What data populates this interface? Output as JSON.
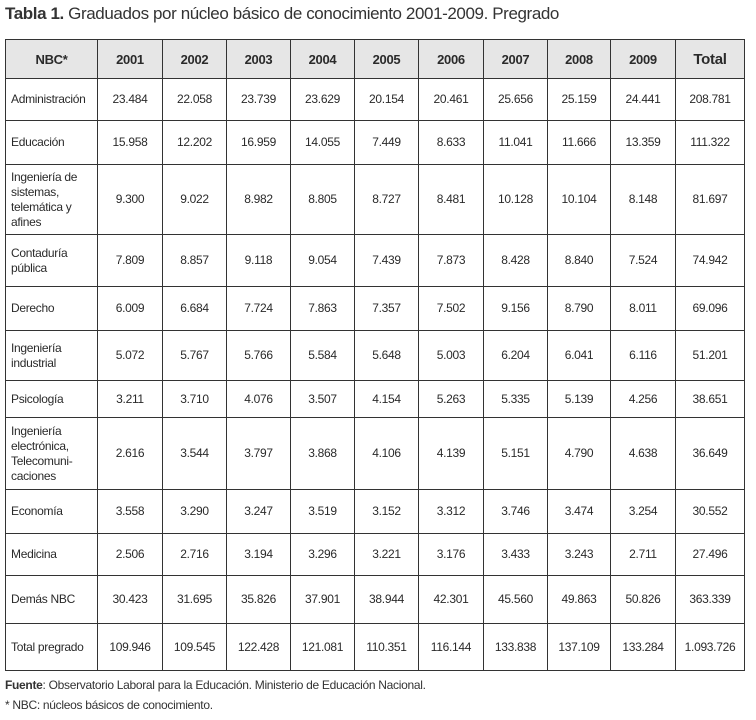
{
  "title": {
    "label": "Tabla 1.",
    "text": " Graduados por núcleo básico de conocimiento 2001-2009. Pregrado"
  },
  "table": {
    "headers": [
      "NBC*",
      "2001",
      "2002",
      "2003",
      "2004",
      "2005",
      "2006",
      "2007",
      "2008",
      "2009",
      "Total"
    ],
    "rows": [
      {
        "label": "Administración",
        "values": [
          "23.484",
          "22.058",
          "23.739",
          "23.629",
          "20.154",
          "20.461",
          "25.656",
          "25.159",
          "24.441",
          "208.781"
        ]
      },
      {
        "label": "Educación",
        "values": [
          "15.958",
          "12.202",
          "16.959",
          "14.055",
          "7.449",
          "8.633",
          "11.041",
          "11.666",
          "13.359",
          "111.322"
        ]
      },
      {
        "label": "Ingeniería de sistemas, telemática y afines",
        "values": [
          "9.300",
          "9.022",
          "8.982",
          "8.805",
          "8.727",
          "8.481",
          "10.128",
          "10.104",
          "8.148",
          "81.697"
        ]
      },
      {
        "label": "Contaduría pública",
        "values": [
          "7.809",
          "8.857",
          "9.118",
          "9.054",
          "7.439",
          "7.873",
          "8.428",
          "8.840",
          "7.524",
          "74.942"
        ]
      },
      {
        "label": "Derecho",
        "values": [
          "6.009",
          "6.684",
          "7.724",
          "7.863",
          "7.357",
          "7.502",
          "9.156",
          "8.790",
          "8.011",
          "69.096"
        ]
      },
      {
        "label": "Ingeniería industrial",
        "values": [
          "5.072",
          "5.767",
          "5.766",
          "5.584",
          "5.648",
          "5.003",
          "6.204",
          "6.041",
          "6.116",
          "51.201"
        ]
      },
      {
        "label": "Psicología",
        "values": [
          "3.211",
          "3.710",
          "4.076",
          "3.507",
          "4.154",
          "5.263",
          "5.335",
          "5.139",
          "4.256",
          "38.651"
        ]
      },
      {
        "label": "Ingeniería electrónica, Telecomuni-caciones",
        "values": [
          "2.616",
          "3.544",
          "3.797",
          "3.868",
          "4.106",
          "4.139",
          "5.151",
          "4.790",
          "4.638",
          "36.649"
        ]
      },
      {
        "label": "Economía",
        "values": [
          "3.558",
          "3.290",
          "3.247",
          "3.519",
          "3.152",
          "3.312",
          "3.746",
          "3.474",
          "3.254",
          "30.552"
        ]
      },
      {
        "label": "Medicina",
        "values": [
          "2.506",
          "2.716",
          "3.194",
          "3.296",
          "3.221",
          "3.176",
          "3.433",
          "3.243",
          "2.711",
          "27.496"
        ]
      },
      {
        "label": "Demás NBC",
        "values": [
          "30.423",
          "31.695",
          "35.826",
          "37.901",
          "38.944",
          "42.301",
          "45.560",
          "49.863",
          "50.826",
          "363.339"
        ]
      },
      {
        "label": "Total pregrado",
        "values": [
          "109.946",
          "109.545",
          "122.428",
          "121.081",
          "110.351",
          "116.144",
          "133.838",
          "137.109",
          "133.284",
          "1.093.726"
        ]
      }
    ]
  },
  "footer": {
    "source_label": "Fuente",
    "source_text": ": Observatorio Laboral para la Educación. Ministerio de Educación Nacional.",
    "note": "* NBC: núcleos básicos de conocimiento."
  }
}
